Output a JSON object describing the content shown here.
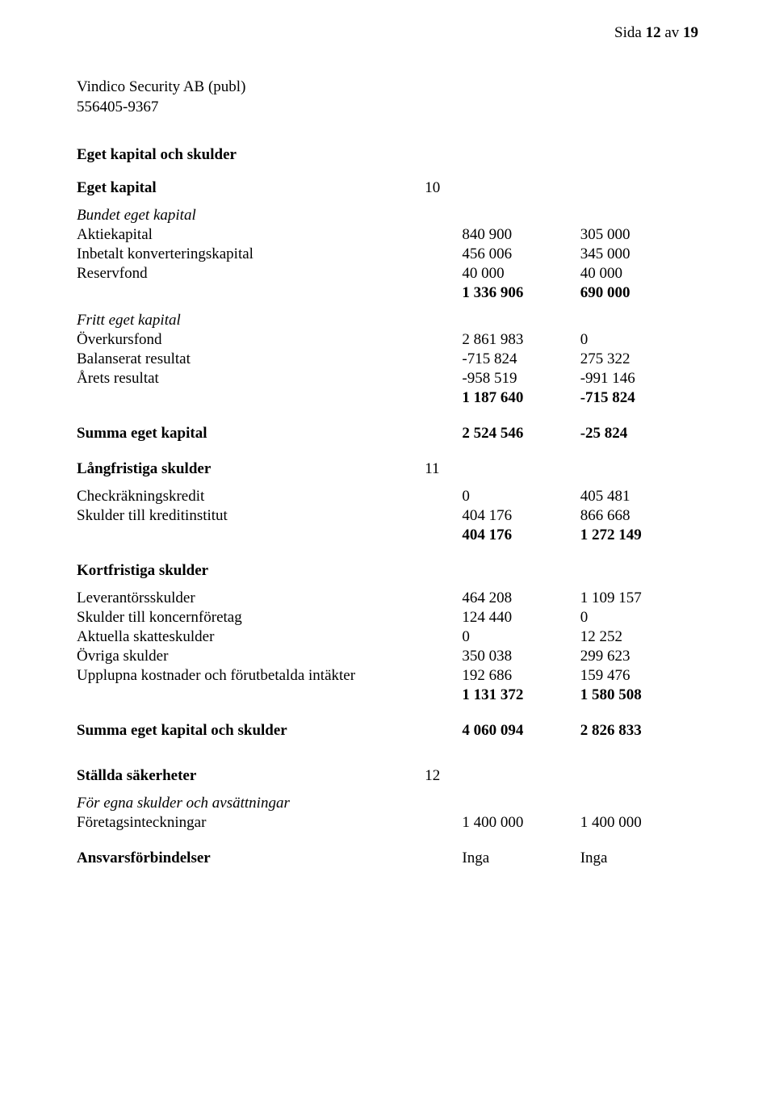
{
  "page_header": {
    "prefix": "Sida ",
    "current": "12",
    "sep": " av ",
    "total": "19"
  },
  "company": {
    "name": "Vindico Security AB (publ)",
    "orgnr": "556405-9367"
  },
  "titles": {
    "eget_kapital_och_skulder": "Eget kapital och skulder",
    "eget_kapital": "Eget kapital",
    "bundet_eget_kapital": "Bundet eget kapital",
    "fritt_eget_kapital": "Fritt eget kapital",
    "summa_eget_kapital": "Summa eget kapital",
    "langfristiga_skulder": "Långfristiga skulder",
    "kortfristiga_skulder": "Kortfristiga skulder",
    "summa_eget_kapital_och_skulder": "Summa eget kapital och skulder",
    "stallda_sakerheter": "Ställda säkerheter",
    "for_egna_skulder": "För egna skulder och avsättningar",
    "ansvarsforbindelser": "Ansvarsförbindelser"
  },
  "notes": {
    "eget_kapital": "10",
    "langfristiga": "11",
    "stallda": "12"
  },
  "rows": {
    "aktiekapital": {
      "label": "Aktiekapital",
      "v1": "840 900",
      "v2": "305 000"
    },
    "inbetalt": {
      "label": "Inbetalt konverteringskapital",
      "v1": "456 006",
      "v2": "345 000"
    },
    "reservfond": {
      "label": "Reservfond",
      "v1": "40 000",
      "v2": "40 000"
    },
    "bundet_sum": {
      "v1": "1 336 906",
      "v2": "690 000"
    },
    "overkursfond": {
      "label": "Överkursfond",
      "v1": "2 861 983",
      "v2": "0"
    },
    "balanserat": {
      "label": "Balanserat resultat",
      "v1": "-715 824",
      "v2": "275 322"
    },
    "arets_resultat": {
      "label": "Årets resultat",
      "v1": "-958 519",
      "v2": "-991 146"
    },
    "fritt_sum": {
      "v1": "1 187 640",
      "v2": "-715 824"
    },
    "summa_eget": {
      "v1": "2 524 546",
      "v2": "-25 824"
    },
    "checkkredit": {
      "label": "Checkräkningskredit",
      "v1": "0",
      "v2": "405 481"
    },
    "skulder_kredit": {
      "label": "Skulder till kreditinstitut",
      "v1": "404 176",
      "v2": "866 668"
    },
    "lang_sum": {
      "v1": "404 176",
      "v2": "1 272 149"
    },
    "leverantor": {
      "label": "Leverantörsskulder",
      "v1": "464 208",
      "v2": "1 109 157"
    },
    "skulder_koncern": {
      "label": "Skulder till koncernföretag",
      "v1": "124 440",
      "v2": "0"
    },
    "aktuella_skatt": {
      "label": "Aktuella skatteskulder",
      "v1": "0",
      "v2": "12 252"
    },
    "ovriga_skulder": {
      "label": "Övriga skulder",
      "v1": "350 038",
      "v2": "299 623"
    },
    "upplupna": {
      "label": "Upplupna kostnader och förutbetalda intäkter",
      "v1": "192 686",
      "v2": "159 476"
    },
    "kort_sum": {
      "v1": "1 131 372",
      "v2": "1 580 508"
    },
    "summa_total": {
      "v1": "4 060 094",
      "v2": "2 826 833"
    },
    "foretagsinteckn": {
      "label": "Företagsinteckningar",
      "v1": "1 400 000",
      "v2": "1 400 000"
    },
    "ansvar": {
      "v1": "Inga",
      "v2": "Inga"
    }
  }
}
